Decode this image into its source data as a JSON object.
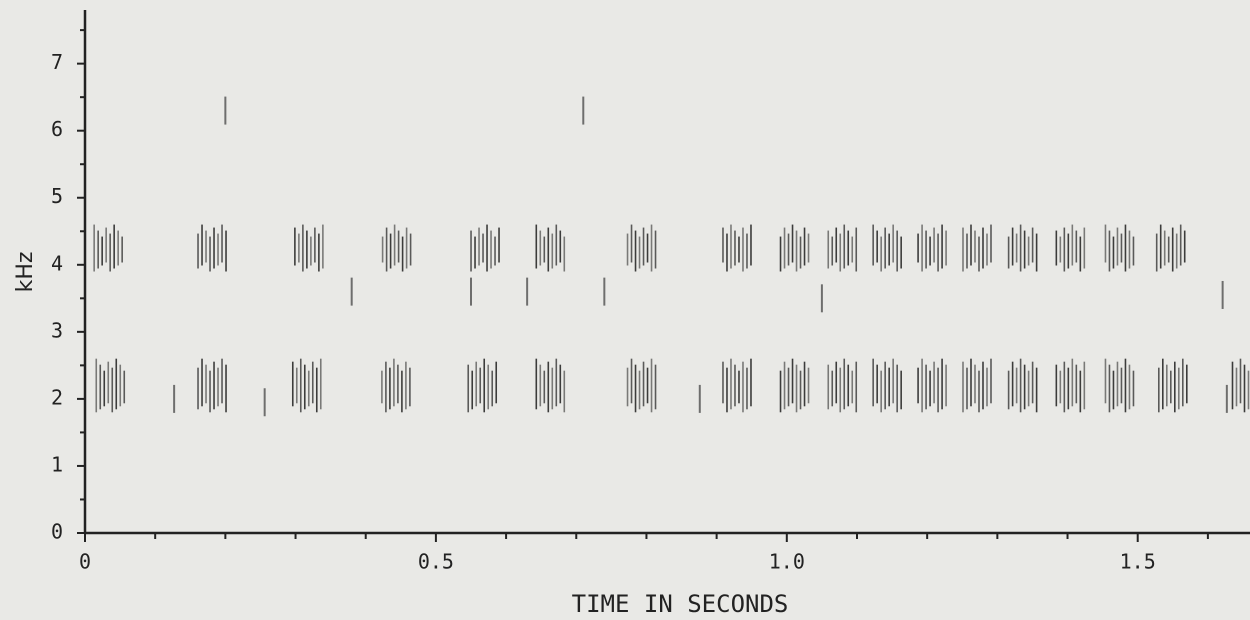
{
  "chart_data": {
    "type": "spectrogram",
    "xlabel": "TIME IN SECONDS",
    "ylabel": "kHz",
    "xlim": [
      0,
      1.66
    ],
    "ylim": [
      0,
      7.8
    ],
    "xticks": [
      0,
      0.5,
      {
        "value": 1,
        "label": "1.0"
      },
      1.5
    ],
    "yticks": [
      0,
      1,
      2,
      3,
      4,
      5,
      6,
      7
    ],
    "xminorticks": [
      0.1,
      0.2,
      0.3,
      0.4,
      0.6,
      0.7,
      0.8,
      0.9,
      1.1,
      1.2,
      1.3,
      1.4,
      1.6
    ],
    "yminorticks": [
      0.5,
      1.5,
      2.5,
      3.5,
      4.5,
      5.5,
      6.5,
      7.5
    ],
    "color": "#1e1e1e",
    "series": [
      {
        "name": "lower band",
        "band": [
          1.8,
          2.6
        ],
        "times": [
          0.036,
          0.181,
          0.316,
          0.443,
          0.566,
          0.663,
          0.793,
          0.929,
          1.011,
          1.079,
          1.143,
          1.207,
          1.271,
          1.336,
          1.404,
          1.474,
          1.55,
          1.655
        ]
      },
      {
        "name": "upper band",
        "band": [
          3.9,
          4.6
        ],
        "times": [
          0.033,
          0.181,
          0.319,
          0.444,
          0.57,
          0.663,
          0.793,
          0.929,
          1.011,
          1.079,
          1.143,
          1.207,
          1.271,
          1.336,
          1.404,
          1.474,
          1.547
        ]
      }
    ],
    "isolated": {
      "times": [
        0.127,
        0.256,
        0.876,
        1.627,
        0.38,
        0.55,
        0.63,
        0.74,
        1.05,
        1.621,
        0.2,
        0.71
      ],
      "freqs": [
        2.0,
        1.95,
        2.0,
        2.0,
        3.6,
        3.6,
        3.6,
        3.6,
        3.5,
        3.55,
        6.3,
        6.3
      ]
    }
  }
}
